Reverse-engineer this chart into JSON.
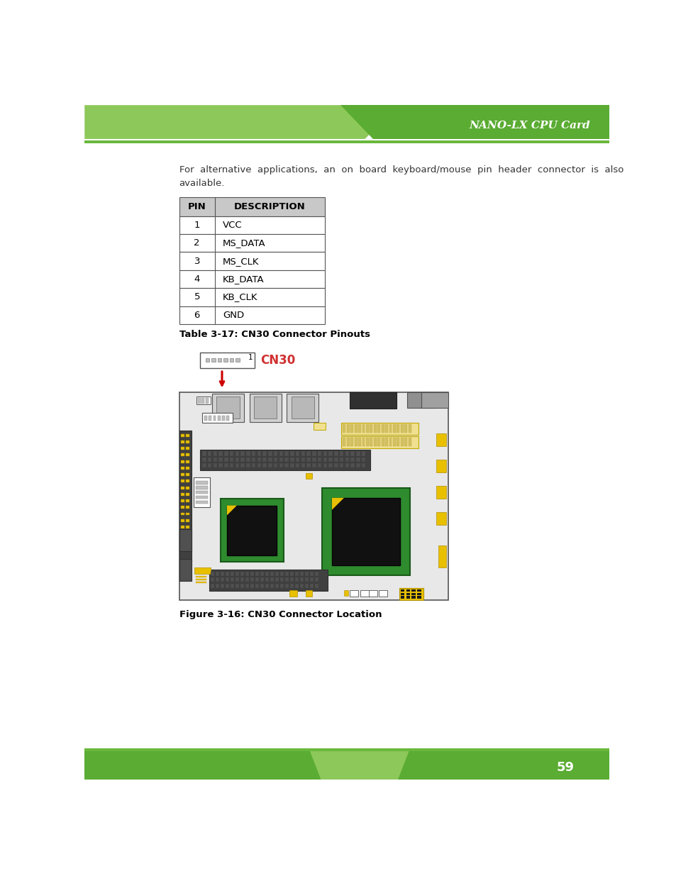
{
  "title_header": "NANO-LX CPU Card",
  "page_number": "59",
  "table_caption": "Table 3-17: CN30 Connector Pinouts",
  "figure_caption": "Figure 3-16: CN30 Connector Location",
  "table_headers": [
    "PIN",
    "DESCRIPTION"
  ],
  "table_rows": [
    [
      "1",
      "VCC"
    ],
    [
      "2",
      "MS_DATA"
    ],
    [
      "3",
      "MS_CLK"
    ],
    [
      "4",
      "KB_DATA"
    ],
    [
      "5",
      "KB_CLK"
    ],
    [
      "6",
      "GND"
    ]
  ],
  "header_bg_color": "#c8c8c8",
  "table_border_color": "#555555",
  "green_dark": "#5aac32",
  "green_light": "#8dc85a",
  "green_line": "#6ab83c",
  "white": "#ffffff",
  "cn30_label_color": "#d03030",
  "board_bg": "#e0e0e0",
  "bg_page": "#ffffff",
  "intro_line1": "For  alternative  applications,  an  on  board  keyboard/mouse  pin  header  connector  is  also",
  "intro_line2": "available."
}
